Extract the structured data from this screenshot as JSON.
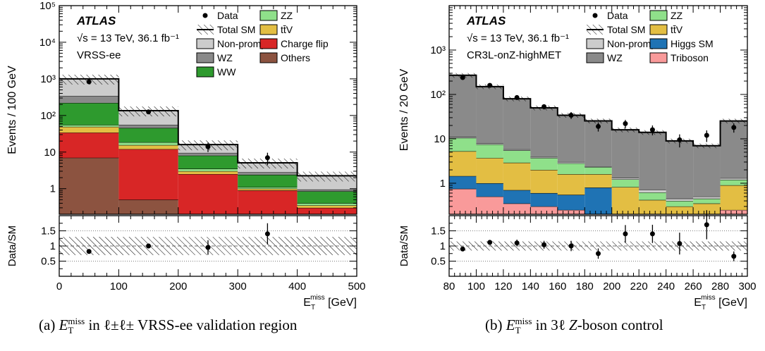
{
  "captions": {
    "left": {
      "prefix": "(a) ",
      "symbol": "E",
      "sub": "T",
      "sup": "miss",
      "text": " in ℓ±ℓ± VRSS-ee validation region"
    },
    "right": {
      "prefix": "(b) ",
      "symbol": "E",
      "sub": "T",
      "sup": "miss",
      "mid": " in 3ℓ ",
      "z": "Z",
      "text": "-boson control"
    }
  },
  "chart_data": [
    {
      "type": "bar",
      "stacked": true,
      "log_y": true,
      "experiment": "ATLAS",
      "energy_label": "√s = 13 TeV, 36.1 fb⁻¹",
      "region_label": "VRSS-ee",
      "ylabel": "Events / 100 GeV",
      "xlabel": "E_T^miss [GeV]",
      "xlabel_main": "E",
      "xlabel_sub": "T",
      "xlabel_sup": "miss",
      "xlabel_unit": "[GeV]",
      "ratio_ylabel": "Data/SM",
      "bin_edges": [
        0,
        100,
        200,
        300,
        400,
        500
      ],
      "xlim": [
        0,
        500
      ],
      "ylim": [
        0.2,
        100000
      ],
      "xticks": [
        0,
        100,
        200,
        300,
        400,
        500
      ],
      "yticks": [
        {
          "v": 1,
          "label": "1"
        },
        {
          "v": 10,
          "label": "10"
        },
        {
          "v": 100,
          "label": "10²"
        },
        {
          "v": 1000,
          "label": "10³"
        },
        {
          "v": 10000,
          "label": "10⁴"
        },
        {
          "v": 100000,
          "label": "10⁵"
        }
      ],
      "ratio_ylim": [
        0,
        2
      ],
      "ratio_yticks": [
        "0.5",
        "1",
        "1.5"
      ],
      "legend_position": "top",
      "legend": [
        {
          "label": "Data",
          "kind": "data"
        },
        {
          "label": "ZZ",
          "kind": "box",
          "color": "#8fe08a"
        },
        {
          "label": "Total SM",
          "kind": "hatch"
        },
        {
          "label": "tt̄V",
          "kind": "box",
          "color": "#e3be43"
        },
        {
          "label": "Non-prompt",
          "kind": "box",
          "color": "#cccccc"
        },
        {
          "label": "Charge flip",
          "kind": "box",
          "color": "#d82626"
        },
        {
          "label": "WZ",
          "kind": "box",
          "color": "#8a8a8a"
        },
        {
          "label": "Others",
          "kind": "box",
          "color": "#8c5340"
        },
        {
          "label": "WW",
          "kind": "box",
          "color": "#2e9a2e"
        }
      ],
      "stack": [
        {
          "name": "Others",
          "color": "#8c5340",
          "values": [
            7,
            0.5,
            0,
            0,
            0
          ]
        },
        {
          "name": "Charge flip",
          "color": "#d82626",
          "values": [
            27,
            11.5,
            2.5,
            0.9,
            0.3
          ]
        },
        {
          "name": "tt̄V",
          "color": "#e3be43",
          "values": [
            15,
            3.5,
            0.5,
            0.1,
            0.05
          ]
        },
        {
          "name": "ZZ",
          "color": "#8fe08a",
          "values": [
            6,
            3,
            0.5,
            0.1,
            0.05
          ]
        },
        {
          "name": "WW",
          "color": "#2e9a2e",
          "values": [
            165,
            27,
            4.5,
            1.3,
            0.45
          ]
        },
        {
          "name": "WZ",
          "color": "#8a8a8a",
          "values": [
            120,
            10,
            1.5,
            0.4,
            0.1
          ]
        },
        {
          "name": "Non-prompt",
          "color": "#cccccc",
          "values": [
            660,
            80,
            6.5,
            2.3,
            1.3
          ]
        }
      ],
      "total_sm": [
        1000,
        135,
        16,
        5.1,
        2.25
      ],
      "sys_frac": 0.3,
      "data": {
        "x": [
          50,
          150,
          250,
          350,
          450
        ],
        "y": [
          830,
          125,
          14,
          7,
          null
        ],
        "err_low": [
          30,
          11,
          4,
          2.6,
          null
        ],
        "err_high": [
          30,
          11,
          4,
          2.6,
          null
        ]
      },
      "ratio": {
        "x": [
          50,
          150,
          250,
          350
        ],
        "y": [
          0.82,
          1.0,
          0.95,
          1.4
        ],
        "err": [
          0.05,
          0.08,
          0.24,
          0.35
        ]
      },
      "ratio_band": 0.3
    },
    {
      "type": "bar",
      "stacked": true,
      "log_y": true,
      "experiment": "ATLAS",
      "energy_label": "√s = 13 TeV, 36.1 fb⁻¹",
      "region_label": "CR3L-onZ-highMET",
      "ylabel": "Events / 20 GeV",
      "xlabel": "E_T^miss [GeV]",
      "xlabel_main": "E",
      "xlabel_sub": "T",
      "xlabel_sup": "miss",
      "xlabel_unit": "[GeV]",
      "ratio_ylabel": "Data/SM",
      "bin_edges": [
        80,
        100,
        120,
        140,
        160,
        180,
        200,
        220,
        240,
        260,
        280,
        300
      ],
      "xlim": [
        80,
        300
      ],
      "ylim": [
        0.2,
        10000
      ],
      "xticks": [
        80,
        100,
        120,
        140,
        160,
        180,
        200,
        220,
        240,
        260,
        280,
        300
      ],
      "yticks": [
        {
          "v": 1,
          "label": "1"
        },
        {
          "v": 10,
          "label": "10"
        },
        {
          "v": 100,
          "label": "10²"
        },
        {
          "v": 1000,
          "label": "10³"
        }
      ],
      "ratio_ylim": [
        0,
        2
      ],
      "ratio_yticks": [
        "0.5",
        "1",
        "1.5"
      ],
      "legend_position": "top",
      "legend": [
        {
          "label": "Data",
          "kind": "data"
        },
        {
          "label": "ZZ",
          "kind": "box",
          "color": "#8fe08a"
        },
        {
          "label": "Total SM",
          "kind": "hatch"
        },
        {
          "label": "tt̄V",
          "kind": "box",
          "color": "#e3be43"
        },
        {
          "label": "Non-prompt",
          "kind": "box",
          "color": "#cccccc"
        },
        {
          "label": "Higgs SM",
          "kind": "box",
          "color": "#1f73b4"
        },
        {
          "label": "WZ",
          "kind": "box",
          "color": "#8a8a8a"
        },
        {
          "label": "Triboson",
          "kind": "box",
          "color": "#f99a9a"
        }
      ],
      "stack": [
        {
          "name": "Triboson",
          "color": "#f99a9a",
          "values": [
            0.75,
            0.5,
            0.35,
            0.3,
            0.25,
            0.2,
            0.12,
            0.12,
            0.1,
            0.1,
            0.25
          ]
        },
        {
          "name": "Higgs SM",
          "color": "#1f73b4",
          "values": [
            0.7,
            0.5,
            0.35,
            0.3,
            0.3,
            0.6,
            0,
            0,
            0,
            0,
            0
          ]
        },
        {
          "name": "tt̄V",
          "color": "#e3be43",
          "values": [
            3.8,
            2.7,
            2.2,
            1.4,
            1.05,
            0.8,
            0.7,
            0.3,
            0.2,
            0.25,
            0.65
          ]
        },
        {
          "name": "ZZ",
          "color": "#8fe08a",
          "values": [
            5.2,
            3.8,
            2.6,
            1.7,
            1.2,
            0.7,
            0.4,
            0.2,
            0.1,
            0.1,
            0.3
          ]
        },
        {
          "name": "Non-prompt",
          "color": "#cccccc",
          "values": [
            0.5,
            0.4,
            0.3,
            0.2,
            0.2,
            0.1,
            0.1,
            0.1,
            0.05,
            0.05,
            0.1
          ]
        },
        {
          "name": "WZ",
          "color": "#8a8a8a",
          "values": [
            259,
            142,
            74,
            46,
            31,
            23,
            14.7,
            13.3,
            8.5,
            6.5,
            24
          ]
        }
      ],
      "total_sm": [
        270,
        150,
        80,
        50,
        34,
        25.4,
        16,
        14,
        9,
        7,
        25.3
      ],
      "sys_frac": 0.12,
      "data": {
        "x": [
          90,
          110,
          130,
          150,
          170,
          190,
          210,
          230,
          250,
          270,
          290
        ],
        "y": [
          240,
          160,
          85,
          53,
          34,
          19,
          22,
          16,
          9.5,
          12,
          18
        ],
        "err_low": [
          16,
          13,
          9,
          7,
          6,
          4.4,
          4.7,
          4,
          3.1,
          3.5,
          4.2
        ],
        "err_high": [
          16,
          13,
          9,
          7,
          6,
          4.4,
          4.7,
          4,
          3.1,
          3.5,
          4.2
        ]
      },
      "ratio": {
        "x": [
          90,
          110,
          130,
          150,
          170,
          190,
          210,
          230,
          250,
          270,
          290
        ],
        "y": [
          0.9,
          1.12,
          1.1,
          1.04,
          1.0,
          0.75,
          1.4,
          1.4,
          1.08,
          1.7,
          0.66
        ],
        "err": [
          0.06,
          0.08,
          0.11,
          0.13,
          0.17,
          0.17,
          0.29,
          0.3,
          0.36,
          0.48,
          0.16
        ]
      },
      "ratio_band": 0.15
    }
  ]
}
